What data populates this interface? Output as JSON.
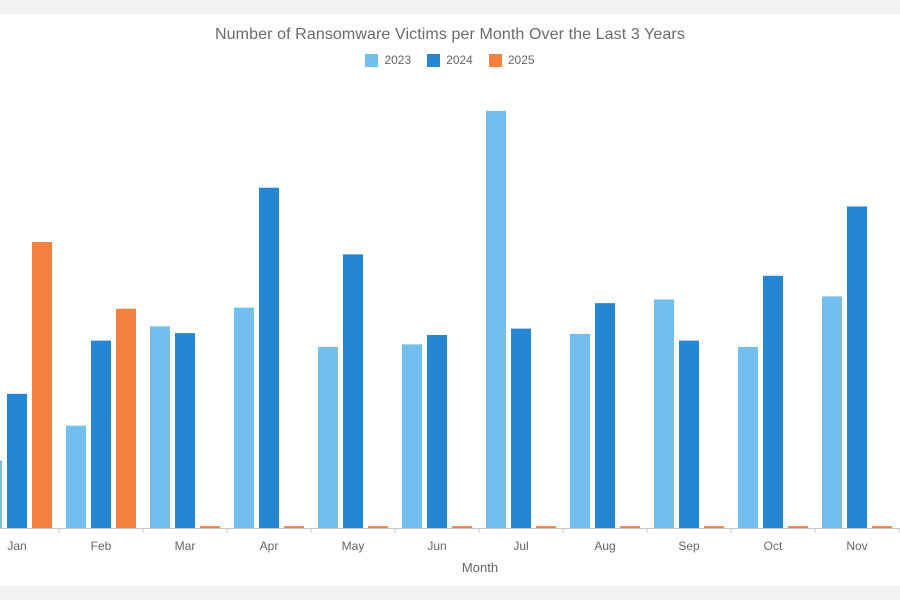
{
  "chart_data": {
    "type": "bar",
    "title": "Number of Ransomware Victims per Month Over the Last 3 Years",
    "xlabel": "Month",
    "ylabel": "",
    "categories": [
      "Jan",
      "Feb",
      "Mar",
      "Apr",
      "May",
      "Jun",
      "Jul",
      "Aug",
      "Sep",
      "Oct",
      "Nov"
    ],
    "series": [
      {
        "name": "2023",
        "color": "#73bff0",
        "values": [
          180,
          273,
          538,
          588,
          483,
          490,
          1113,
          518,
          610,
          483,
          618
        ]
      },
      {
        "name": "2024",
        "color": "#2586d4",
        "values": [
          358,
          500,
          520,
          908,
          730,
          515,
          532,
          600,
          500,
          673,
          858
        ]
      },
      {
        "name": "2025",
        "color": "#f5813f",
        "values": [
          763,
          585,
          5,
          5,
          5,
          5,
          5,
          5,
          5,
          5,
          5
        ]
      }
    ],
    "ylim": [
      0,
      1150
    ],
    "legend_position": "top-center",
    "grid": false
  }
}
